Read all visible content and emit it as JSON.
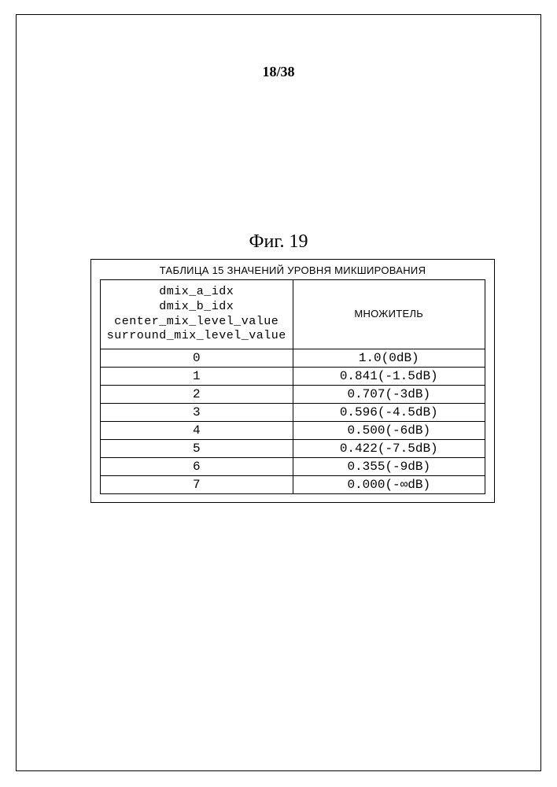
{
  "page_number": "18/38",
  "figure_caption": "Фиг. 19",
  "table": {
    "title": "ТАБЛИЦА 15 ЗНАЧЕНИЙ УРОВНЯ МИКШИРОВАНИЯ",
    "header_left_lines": [
      "dmix_a_idx",
      "dmix_b_idx",
      "center_mix_level_value",
      "surround_mix_level_value"
    ],
    "header_right": "МНОЖИТЕЛЬ",
    "rows": [
      {
        "idx": "0",
        "val": "1.0(0dB)"
      },
      {
        "idx": "1",
        "val": "0.841(-1.5dB)"
      },
      {
        "idx": "2",
        "val": "0.707(-3dB)"
      },
      {
        "idx": "3",
        "val": "0.596(-4.5dB)"
      },
      {
        "idx": "4",
        "val": "0.500(-6dB)"
      },
      {
        "idx": "5",
        "val": "0.422(-7.5dB)"
      },
      {
        "idx": "6",
        "val": "0.355(-9dB)"
      },
      {
        "idx": "7",
        "val": "0.000(-∞dB)"
      }
    ]
  },
  "colors": {
    "background": "#ffffff",
    "text": "#000000",
    "border": "#000000"
  },
  "fonts": {
    "caption_size_pt": 24,
    "pagenum_size_pt": 18,
    "table_title_size_pt": 13,
    "cell_size_pt": 16,
    "mono_family": "Courier New",
    "sans_family": "Arial",
    "serif_family": "Times New Roman"
  }
}
